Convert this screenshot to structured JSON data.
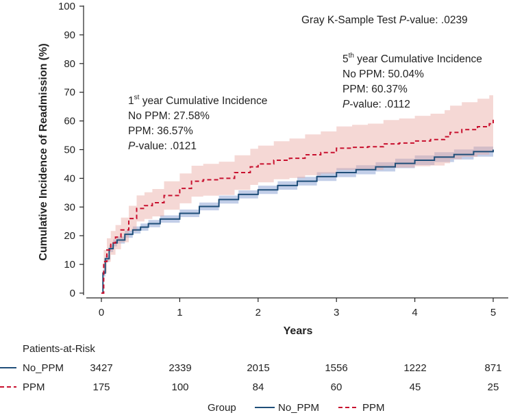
{
  "chart_data": {
    "type": "line",
    "xlabel": "Years",
    "ylabel": "Cumulative Incidence of Readmission (%)",
    "xlim": [
      0,
      5
    ],
    "ylim": [
      0,
      100
    ],
    "xticks": [
      "0",
      "1",
      "2",
      "3",
      "4",
      "5"
    ],
    "yticks": [
      "0",
      "10",
      "20",
      "30",
      "40",
      "50",
      "60",
      "70",
      "80",
      "90",
      "100"
    ],
    "series": [
      {
        "name": "No_PPM",
        "color": "#1f4e79",
        "band_color": "#8fa6d6",
        "style": "solid",
        "x": [
          0,
          0.02,
          0.05,
          0.1,
          0.15,
          0.2,
          0.3,
          0.4,
          0.5,
          0.6,
          0.75,
          1.0,
          1.25,
          1.5,
          1.75,
          2.0,
          2.25,
          2.5,
          2.75,
          3.0,
          3.25,
          3.5,
          3.75,
          4.0,
          4.25,
          4.5,
          4.75,
          5.0
        ],
        "y": [
          0,
          7,
          12,
          15.5,
          17.5,
          18.5,
          20.5,
          22,
          23,
          24.2,
          25.8,
          27.8,
          30.2,
          32.6,
          34.4,
          36,
          37.5,
          39,
          40.6,
          42,
          43,
          44,
          45.2,
          46.3,
          47.4,
          48.3,
          49.3,
          50
        ]
      },
      {
        "name": "PPM",
        "color": "#c8102e",
        "band_color": "#e8a9a1",
        "style": "dashed",
        "x": [
          0,
          0.03,
          0.07,
          0.12,
          0.18,
          0.25,
          0.35,
          0.45,
          0.55,
          0.65,
          0.8,
          1.0,
          1.15,
          1.3,
          1.5,
          1.7,
          1.9,
          2.0,
          2.2,
          2.4,
          2.6,
          2.8,
          3.0,
          3.2,
          3.4,
          3.6,
          3.8,
          4.0,
          4.2,
          4.38,
          4.45,
          4.6,
          4.8,
          4.95,
          5.0
        ],
        "y": [
          0,
          11,
          15,
          17.5,
          19.5,
          22,
          26,
          29.5,
          30.5,
          31.5,
          34,
          36.5,
          39,
          39.5,
          40,
          42,
          44,
          45,
          46.3,
          47,
          48.2,
          49,
          50.5,
          50.8,
          51,
          52,
          52.3,
          53,
          53.5,
          54.5,
          56,
          57,
          58,
          59,
          60.4
        ]
      }
    ],
    "annotations": {
      "gray_test": "Gray K-Sample Test ",
      "gray_p_label": "P",
      "gray_p_value": "-value: .0239",
      "year1_sup": "st",
      "year1_prefix": "1",
      "year1_title": " year Cumulative Incidence",
      "year1_no_ppm": "No PPM: 27.58%",
      "year1_ppm": "PPM: 36.57%",
      "year1_p_label": "P",
      "year1_p_value": "-value: .0121",
      "year5_prefix": "5",
      "year5_sup": "th",
      "year5_title": " year Cumulative Incidence",
      "year5_no_ppm": "No PPM: 50.04%",
      "year5_ppm": "PPM: 60.37%",
      "year5_p_label": "P",
      "year5_p_value": "-value: .0112"
    },
    "risk_table": {
      "title": "Patients-at-Risk",
      "rows": [
        {
          "label": "No_PPM",
          "values": [
            "3427",
            "2339",
            "2015",
            "1556",
            "1222",
            "871"
          ]
        },
        {
          "label": "PPM",
          "values": [
            "175",
            "100",
            "84",
            "60",
            "45",
            "25"
          ]
        }
      ]
    },
    "legend": {
      "title": "Group",
      "items": [
        "No_PPM",
        "PPM"
      ]
    }
  }
}
